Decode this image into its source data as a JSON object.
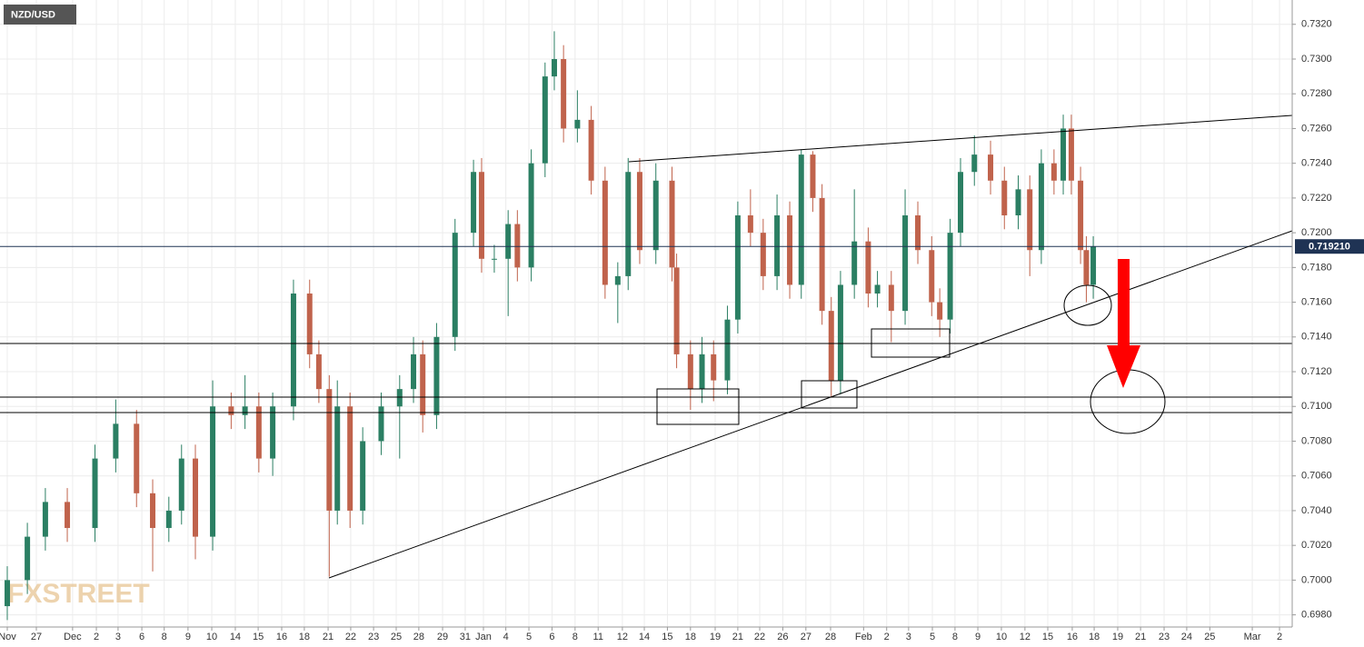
{
  "chart_data": {
    "type": "candlestick",
    "title": "NZD/USD",
    "watermark": "FXSTREET",
    "up_color": "#2b7f63",
    "down_color": "#c0634c",
    "grid": true,
    "last_price": {
      "value": 0.71921,
      "label": "0.719210"
    },
    "last_price_color": "#1f3354",
    "ylim": [
      0.6973,
      0.7334
    ],
    "xlim": [
      -0.315,
      55.67
    ],
    "yticks": [
      {
        "value": 0.698,
        "label": "0.6980"
      },
      {
        "value": 0.7,
        "label": "0.7000"
      },
      {
        "value": 0.702,
        "label": "0.7020"
      },
      {
        "value": 0.704,
        "label": "0.7040"
      },
      {
        "value": 0.706,
        "label": "0.7060"
      },
      {
        "value": 0.708,
        "label": "0.7080"
      },
      {
        "value": 0.71,
        "label": "0.7100"
      },
      {
        "value": 0.712,
        "label": "0.7120"
      },
      {
        "value": 0.714,
        "label": "0.7140"
      },
      {
        "value": 0.716,
        "label": "0.7160"
      },
      {
        "value": 0.718,
        "label": "0.7180"
      },
      {
        "value": 0.72,
        "label": "0.7200"
      },
      {
        "value": 0.722,
        "label": "0.7220"
      },
      {
        "value": 0.724,
        "label": "0.7240"
      },
      {
        "value": 0.726,
        "label": "0.7260"
      },
      {
        "value": 0.728,
        "label": "0.7280"
      },
      {
        "value": 0.73,
        "label": "0.7300"
      },
      {
        "value": 0.732,
        "label": "0.7320"
      }
    ],
    "xticks": [
      {
        "value": 0,
        "label": "Nov"
      },
      {
        "value": 1.26,
        "label": "27"
      },
      {
        "value": 2.83,
        "label": "Dec"
      },
      {
        "value": 3.86,
        "label": "2"
      },
      {
        "value": 4.8,
        "label": "3"
      },
      {
        "value": 5.83,
        "label": "6"
      },
      {
        "value": 6.8,
        "label": "8"
      },
      {
        "value": 7.83,
        "label": "9"
      },
      {
        "value": 8.86,
        "label": "10"
      },
      {
        "value": 9.88,
        "label": "14"
      },
      {
        "value": 10.87,
        "label": "15"
      },
      {
        "value": 11.89,
        "label": "16"
      },
      {
        "value": 12.87,
        "label": "18"
      },
      {
        "value": 13.9,
        "label": "21"
      },
      {
        "value": 14.88,
        "label": "22"
      },
      {
        "value": 15.87,
        "label": "23"
      },
      {
        "value": 16.85,
        "label": "25"
      },
      {
        "value": 17.83,
        "label": "28"
      },
      {
        "value": 18.86,
        "label": "29"
      },
      {
        "value": 19.84,
        "label": "31"
      },
      {
        "value": 20.63,
        "label": "Jan"
      },
      {
        "value": 21.6,
        "label": "4"
      },
      {
        "value": 22.6,
        "label": "5"
      },
      {
        "value": 23.6,
        "label": "6"
      },
      {
        "value": 24.6,
        "label": "8"
      },
      {
        "value": 25.6,
        "label": "11"
      },
      {
        "value": 26.65,
        "label": "12"
      },
      {
        "value": 27.6,
        "label": "14"
      },
      {
        "value": 28.6,
        "label": "15"
      },
      {
        "value": 29.6,
        "label": "18"
      },
      {
        "value": 30.67,
        "label": "19"
      },
      {
        "value": 31.65,
        "label": "21"
      },
      {
        "value": 32.6,
        "label": "22"
      },
      {
        "value": 33.6,
        "label": "26"
      },
      {
        "value": 34.6,
        "label": "27"
      },
      {
        "value": 35.67,
        "label": "28"
      },
      {
        "value": 37.1,
        "label": "Feb"
      },
      {
        "value": 38.1,
        "label": "2"
      },
      {
        "value": 39.05,
        "label": "3"
      },
      {
        "value": 40.08,
        "label": "5"
      },
      {
        "value": 41.06,
        "label": "8"
      },
      {
        "value": 42.05,
        "label": "9"
      },
      {
        "value": 43.07,
        "label": "10"
      },
      {
        "value": 44.09,
        "label": "12"
      },
      {
        "value": 45.08,
        "label": "15"
      },
      {
        "value": 46.14,
        "label": "16"
      },
      {
        "value": 47.09,
        "label": "18"
      },
      {
        "value": 48.11,
        "label": "19"
      },
      {
        "value": 49.1,
        "label": "21"
      },
      {
        "value": 50.12,
        "label": "23"
      },
      {
        "value": 51.1,
        "label": "24"
      },
      {
        "value": 52.1,
        "label": "25"
      },
      {
        "value": 53.94,
        "label": "Mar"
      },
      {
        "value": 55.12,
        "label": "2"
      }
    ],
    "x": [
      0,
      0.87,
      1.65,
      2.6,
      3.8,
      4.7,
      5.6,
      6.3,
      7,
      7.55,
      8.15,
      8.9,
      9.7,
      10.3,
      10.9,
      11.5,
      12.4,
      13.1,
      13.5,
      13.95,
      14.3,
      14.85,
      15.4,
      16.2,
      17,
      17.6,
      18,
      18.6,
      19.4,
      20.2,
      20.55,
      21.1,
      21.7,
      22.1,
      22.7,
      23.3,
      23.7,
      24.1,
      24.7,
      25.3,
      25.9,
      26.45,
      26.9,
      27.4,
      28.1,
      28.8,
      29.0,
      29.6,
      30.1,
      30.6,
      31.2,
      31.65,
      32.2,
      32.75,
      33.35,
      33.9,
      34.4,
      34.9,
      35.3,
      35.7,
      36.1,
      36.7,
      37.3,
      37.7,
      38.3,
      38.9,
      39.45,
      40.05,
      40.4,
      40.85,
      41.3,
      41.9,
      42.6,
      43.2,
      43.8,
      44.3,
      44.8,
      45.35,
      45.75,
      46.1,
      46.5,
      46.75,
      47.05
    ],
    "open": [
      0.6985,
      0.7,
      0.7025,
      0.7045,
      0.703,
      0.707,
      0.709,
      0.705,
      0.703,
      0.704,
      0.707,
      0.7025,
      0.71,
      0.7095,
      0.71,
      0.707,
      0.71,
      0.7165,
      0.713,
      0.711,
      0.704,
      0.71,
      0.704,
      0.708,
      0.71,
      0.711,
      0.713,
      0.7095,
      0.714,
      0.72,
      0.7235,
      0.7185,
      0.7185,
      0.7205,
      0.718,
      0.724,
      0.729,
      0.73,
      0.726,
      0.7265,
      0.723,
      0.717,
      0.7175,
      0.7235,
      0.719,
      0.723,
      0.718,
      0.713,
      0.711,
      0.713,
      0.7115,
      0.715,
      0.721,
      0.72,
      0.7175,
      0.721,
      0.717,
      0.7245,
      0.722,
      0.7155,
      0.7115,
      0.717,
      0.7195,
      0.7165,
      0.717,
      0.7155,
      0.721,
      0.719,
      0.716,
      0.715,
      0.72,
      0.7235,
      0.7245,
      0.723,
      0.721,
      0.7225,
      0.719,
      0.724,
      0.723,
      0.726,
      0.723,
      0.719,
      0.717
    ],
    "high": [
      0.7008,
      0.7033,
      0.7053,
      0.7053,
      0.7078,
      0.7104,
      0.7098,
      0.7058,
      0.7048,
      0.7078,
      0.7078,
      0.7115,
      0.7108,
      0.7118,
      0.7108,
      0.7108,
      0.7173,
      0.7173,
      0.7138,
      0.7118,
      0.7115,
      0.7108,
      0.7088,
      0.7108,
      0.7118,
      0.714,
      0.7138,
      0.7148,
      0.7208,
      0.7242,
      0.7243,
      0.7193,
      0.7213,
      0.7213,
      0.7248,
      0.7298,
      0.7316,
      0.7308,
      0.7282,
      0.7273,
      0.7238,
      0.7183,
      0.7243,
      0.7243,
      0.724,
      0.7238,
      0.7188,
      0.7138,
      0.714,
      0.7138,
      0.7158,
      0.7218,
      0.7225,
      0.7208,
      0.7222,
      0.7218,
      0.7248,
      0.7247,
      0.7228,
      0.7163,
      0.7178,
      0.7225,
      0.7203,
      0.7178,
      0.7178,
      0.7225,
      0.7218,
      0.7198,
      0.7168,
      0.7208,
      0.7243,
      0.7256,
      0.7253,
      0.7238,
      0.7233,
      0.7233,
      0.7248,
      0.7248,
      0.7268,
      0.7268,
      0.7238,
      0.7198,
      0.7198
    ],
    "low": [
      0.6977,
      0.6992,
      0.7017,
      0.7022,
      0.7022,
      0.7062,
      0.7042,
      0.7005,
      0.7022,
      0.7032,
      0.7012,
      0.7017,
      0.7087,
      0.7087,
      0.7062,
      0.706,
      0.7092,
      0.7122,
      0.7102,
      0.7002,
      0.7032,
      0.703,
      0.7032,
      0.7072,
      0.707,
      0.7102,
      0.7085,
      0.7087,
      0.7132,
      0.7192,
      0.7177,
      0.7177,
      0.7152,
      0.7172,
      0.7172,
      0.7232,
      0.7282,
      0.7252,
      0.7252,
      0.7222,
      0.7162,
      0.7148,
      0.7167,
      0.7182,
      0.7182,
      0.7172,
      0.7122,
      0.7098,
      0.7102,
      0.7103,
      0.7107,
      0.7142,
      0.7192,
      0.7167,
      0.7167,
      0.7162,
      0.7162,
      0.7212,
      0.7147,
      0.7105,
      0.7107,
      0.7162,
      0.7157,
      0.7157,
      0.7137,
      0.7147,
      0.7182,
      0.7152,
      0.714,
      0.7142,
      0.7192,
      0.7227,
      0.7222,
      0.7202,
      0.7202,
      0.7175,
      0.7182,
      0.7222,
      0.7222,
      0.7222,
      0.7182,
      0.716,
      0.7162
    ],
    "close": [
      0.7,
      0.7025,
      0.7045,
      0.703,
      0.707,
      0.709,
      0.705,
      0.703,
      0.704,
      0.707,
      0.7025,
      0.71,
      0.7095,
      0.71,
      0.707,
      0.71,
      0.7165,
      0.713,
      0.711,
      0.704,
      0.71,
      0.704,
      0.708,
      0.71,
      0.711,
      0.713,
      0.7095,
      0.714,
      0.72,
      0.7235,
      0.7185,
      0.7185,
      0.7205,
      0.718,
      0.724,
      0.729,
      0.73,
      0.726,
      0.7265,
      0.723,
      0.717,
      0.7175,
      0.7235,
      0.719,
      0.723,
      0.718,
      0.713,
      0.711,
      0.713,
      0.7115,
      0.715,
      0.721,
      0.72,
      0.7175,
      0.721,
      0.717,
      0.7245,
      0.722,
      0.7155,
      0.7115,
      0.717,
      0.7195,
      0.7165,
      0.717,
      0.7155,
      0.721,
      0.719,
      0.716,
      0.715,
      0.72,
      0.7235,
      0.7245,
      0.723,
      0.721,
      0.7225,
      0.719,
      0.724,
      0.723,
      0.726,
      0.723,
      0.719,
      0.717,
      0.7192
    ]
  }
}
